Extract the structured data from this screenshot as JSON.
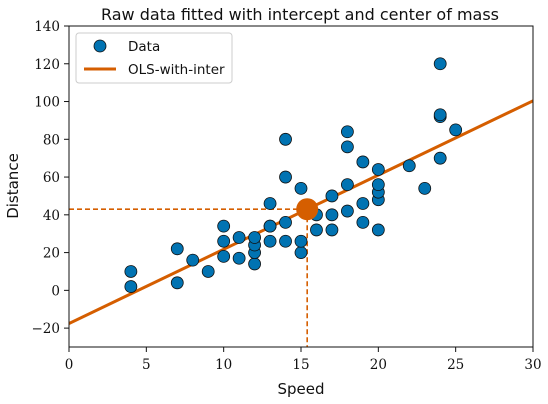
{
  "chart_data": {
    "type": "scatter",
    "title": "Raw data fitted with intercept and center of mass",
    "xlabel": "Speed",
    "ylabel": "Distance",
    "xlim": [
      0,
      30
    ],
    "ylim": [
      -30,
      140
    ],
    "xticks": [
      0,
      5,
      10,
      15,
      20,
      25,
      30
    ],
    "yticks": [
      -20,
      0,
      20,
      40,
      60,
      80,
      100,
      120,
      140
    ],
    "xtick_labels": [
      "0",
      "5",
      "10",
      "15",
      "20",
      "25",
      "30"
    ],
    "ytick_labels": [
      "−20",
      "0",
      "20",
      "40",
      "60",
      "80",
      "100",
      "120",
      "140"
    ],
    "grid": false,
    "legend_position": "top-left",
    "series": [
      {
        "name": "Data",
        "kind": "scatter",
        "color": "#0173b2",
        "points": [
          [
            4,
            2
          ],
          [
            4,
            10
          ],
          [
            7,
            4
          ],
          [
            7,
            22
          ],
          [
            8,
            16
          ],
          [
            9,
            10
          ],
          [
            10,
            18
          ],
          [
            10,
            26
          ],
          [
            10,
            34
          ],
          [
            11,
            17
          ],
          [
            11,
            28
          ],
          [
            12,
            14
          ],
          [
            12,
            20
          ],
          [
            12,
            24
          ],
          [
            12,
            28
          ],
          [
            13,
            26
          ],
          [
            13,
            34
          ],
          [
            13,
            34
          ],
          [
            13,
            46
          ],
          [
            14,
            26
          ],
          [
            14,
            36
          ],
          [
            14,
            60
          ],
          [
            14,
            80
          ],
          [
            15,
            20
          ],
          [
            15,
            26
          ],
          [
            15,
            54
          ],
          [
            16,
            32
          ],
          [
            16,
            40
          ],
          [
            17,
            32
          ],
          [
            17,
            40
          ],
          [
            17,
            50
          ],
          [
            18,
            42
          ],
          [
            18,
            56
          ],
          [
            18,
            76
          ],
          [
            18,
            84
          ],
          [
            19,
            36
          ],
          [
            19,
            46
          ],
          [
            19,
            68
          ],
          [
            20,
            32
          ],
          [
            20,
            48
          ],
          [
            20,
            52
          ],
          [
            20,
            56
          ],
          [
            20,
            64
          ],
          [
            22,
            66
          ],
          [
            23,
            54
          ],
          [
            24,
            70
          ],
          [
            24,
            92
          ],
          [
            24,
            93
          ],
          [
            24,
            120
          ],
          [
            25,
            85
          ]
        ]
      },
      {
        "name": "OLS-with-inter",
        "kind": "line",
        "color": "#d55e00",
        "intercept": -17.58,
        "slope": 3.932
      }
    ],
    "center_of_mass": {
      "x": 15.4,
      "y": 42.98,
      "color": "#d55e00"
    }
  }
}
